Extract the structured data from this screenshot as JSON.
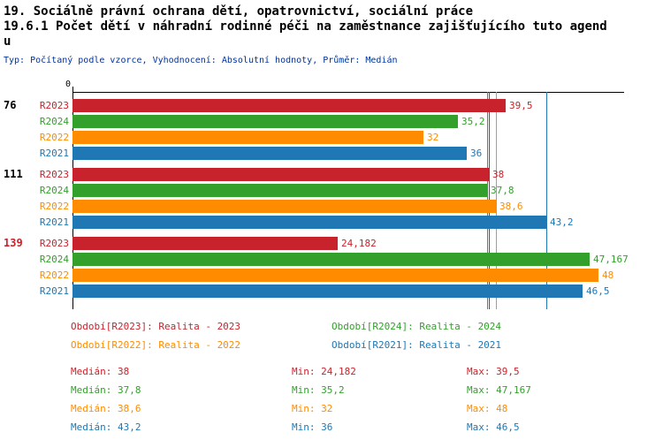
{
  "header": {
    "title1": "19. Sociálně právní ochrana dětí, opatrovnictví, sociální práce",
    "title2": "19.6.1 Počet dětí v náhradní rodinné péči na zaměstnance zajišťujícího tuto agendu",
    "meta": "Typ: Počítaný podle vzorce, Vyhodnocení: Absolutní hodnoty, Průměr: Medián"
  },
  "colors": {
    "R2023": "#c8232c",
    "R2024": "#33a02c",
    "R2022": "#ff8c00",
    "R2021": "#1f77b4",
    "meta_text": "#003399",
    "axis": "#000000",
    "group_label_default": "#000000",
    "group_label_alert": "#c8232c"
  },
  "chart_data": {
    "type": "bar",
    "orientation": "horizontal",
    "value_axis": {
      "origin_label": "0",
      "position": "top",
      "xlim": [
        0,
        50
      ],
      "grid": false
    },
    "series_order": [
      "R2023",
      "R2024",
      "R2022",
      "R2021"
    ],
    "groups": [
      {
        "label": "76",
        "color": "#000000",
        "bars": [
          {
            "series": "R2023",
            "value": 39.5,
            "display": "39,5"
          },
          {
            "series": "R2024",
            "value": 35.2,
            "display": "35,2"
          },
          {
            "series": "R2022",
            "value": 32,
            "display": "32"
          },
          {
            "series": "R2021",
            "value": 36,
            "display": "36"
          }
        ]
      },
      {
        "label": "111",
        "color": "#000000",
        "bars": [
          {
            "series": "R2023",
            "value": 38,
            "display": "38"
          },
          {
            "series": "R2024",
            "value": 37.8,
            "display": "37,8"
          },
          {
            "series": "R2022",
            "value": 38.6,
            "display": "38,6"
          },
          {
            "series": "R2021",
            "value": 43.2,
            "display": "43,2"
          }
        ]
      },
      {
        "label": "139",
        "color": "#c8232c",
        "bars": [
          {
            "series": "R2023",
            "value": 24.182,
            "display": "24,182"
          },
          {
            "series": "R2024",
            "value": 47.167,
            "display": "47,167"
          },
          {
            "series": "R2022",
            "value": 48,
            "display": "48"
          },
          {
            "series": "R2021",
            "value": 46.5,
            "display": "46,5"
          }
        ]
      }
    ],
    "median_lines": [
      {
        "series": "R2023",
        "value": 38
      },
      {
        "series": "R2024",
        "value": 37.8
      },
      {
        "series": "R2022",
        "value": 38.6
      },
      {
        "series": "R2021",
        "value": 43.2
      }
    ]
  },
  "legend": [
    {
      "series": "R2023",
      "label": "Období[R2023]: Realita - 2023"
    },
    {
      "series": "R2024",
      "label": "Období[R2024]: Realita - 2024"
    },
    {
      "series": "R2022",
      "label": "Období[R2022]: Realita - 2022"
    },
    {
      "series": "R2021",
      "label": "Období[R2021]: Realita - 2021"
    }
  ],
  "stats": [
    {
      "series": "R2023",
      "median": "Medián: 38",
      "min": "Min: 24,182",
      "max": "Max: 39,5"
    },
    {
      "series": "R2024",
      "median": "Medián: 37,8",
      "min": "Min: 35,2",
      "max": "Max: 47,167"
    },
    {
      "series": "R2022",
      "median": "Medián: 38,6",
      "min": "Min: 32",
      "max": "Max: 48"
    },
    {
      "series": "R2021",
      "median": "Medián: 43,2",
      "min": "Min: 36",
      "max": "Max: 46,5"
    }
  ]
}
